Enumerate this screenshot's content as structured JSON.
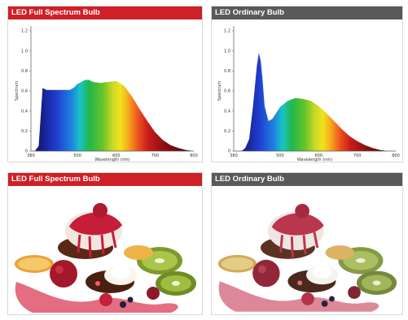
{
  "panels": {
    "chart_full_title": "LED Full Spectrum Bulb",
    "chart_ordinary_title": "LED Ordinary Bulb",
    "photo_full_title": "LED Full Spectrum Bulb",
    "photo_ordinary_title": "LED Ordinary Bulb"
  },
  "colors": {
    "header_full": "#cf2027",
    "header_ordinary": "#595959"
  },
  "chart_data": [
    {
      "type": "area",
      "title": "LED Full Spectrum Bulb",
      "xlabel": "Wavelength (nm)",
      "ylabel": "Spectrum",
      "xlim": [
        380,
        800
      ],
      "ylim": [
        0,
        1.2
      ],
      "x_ticks": [
        "380",
        "500",
        "600",
        "700",
        "800"
      ],
      "y_ticks": [
        "0",
        "0.2",
        "0.4",
        "0.6",
        "0.8",
        "1.0",
        "1.2"
      ],
      "fill": "visible-spectrum gradient",
      "grid": false,
      "x": [
        380,
        390,
        400,
        410,
        420,
        440,
        460,
        480,
        490,
        500,
        520,
        530,
        540,
        560,
        580,
        600,
        620,
        640,
        660,
        680,
        700,
        720,
        740,
        760,
        780,
        800
      ],
      "values": [
        0.0,
        0.0,
        0.05,
        0.63,
        0.61,
        0.61,
        0.61,
        0.61,
        0.63,
        0.67,
        0.71,
        0.71,
        0.69,
        0.68,
        0.69,
        0.7,
        0.65,
        0.55,
        0.42,
        0.3,
        0.19,
        0.11,
        0.06,
        0.03,
        0.01,
        0.0
      ]
    },
    {
      "type": "area",
      "title": "LED Ordinary Bulb",
      "xlabel": "Wavelength (nm)",
      "ylabel": "Spectrum",
      "xlim": [
        380,
        800
      ],
      "ylim": [
        0,
        1.2
      ],
      "x_ticks": [
        "380",
        "500",
        "600",
        "700",
        "800"
      ],
      "y_ticks": [
        "0",
        "0.2",
        "0.4",
        "0.6",
        "0.8",
        "1.0",
        "1.2"
      ],
      "fill": "visible-spectrum gradient",
      "grid": false,
      "x": [
        380,
        400,
        410,
        420,
        430,
        440,
        445,
        450,
        455,
        460,
        470,
        480,
        490,
        500,
        520,
        540,
        560,
        580,
        600,
        620,
        640,
        660,
        680,
        700,
        720,
        740,
        760,
        780,
        800
      ],
      "values": [
        0.0,
        0.0,
        0.03,
        0.12,
        0.45,
        0.85,
        0.98,
        0.9,
        0.7,
        0.45,
        0.3,
        0.32,
        0.38,
        0.44,
        0.5,
        0.53,
        0.52,
        0.5,
        0.45,
        0.38,
        0.3,
        0.22,
        0.15,
        0.1,
        0.06,
        0.03,
        0.01,
        0.0,
        0.0
      ]
    }
  ]
}
